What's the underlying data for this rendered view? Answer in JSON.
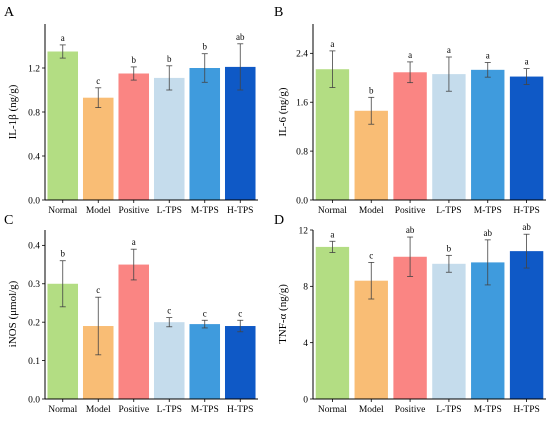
{
  "categories": [
    "Normal",
    "Model",
    "Positive",
    "L-TPS",
    "M-TPS",
    "H-TPS"
  ],
  "colors": [
    "#b3dd83",
    "#f9bd75",
    "#fa8583",
    "#c5dcec",
    "#3f9bdd",
    "#0f59c6"
  ],
  "chart_data": [
    {
      "type": "bar",
      "panel": "A",
      "ylabel": "IL-1β (ng/g)",
      "ylim": [
        0.0,
        1.6
      ],
      "yticks": [
        0.0,
        0.4,
        0.8,
        1.2
      ],
      "ytick_labels": [
        "0.0",
        "0.4",
        "0.8",
        "1.2"
      ],
      "values": [
        1.35,
        0.93,
        1.15,
        1.11,
        1.2,
        1.21
      ],
      "errors": [
        0.06,
        0.09,
        0.06,
        0.11,
        0.13,
        0.21
      ],
      "sig": [
        "a",
        "c",
        "b",
        "b",
        "b",
        "ab"
      ]
    },
    {
      "type": "bar",
      "panel": "B",
      "ylabel": "IL-6 (ng/g)",
      "ylim": [
        0.0,
        2.88
      ],
      "yticks": [
        0.0,
        0.8,
        1.6,
        2.4
      ],
      "ytick_labels": [
        "0.0",
        "0.8",
        "1.6",
        "2.4"
      ],
      "values": [
        2.14,
        1.46,
        2.09,
        2.06,
        2.13,
        2.02
      ],
      "errors": [
        0.3,
        0.22,
        0.17,
        0.28,
        0.12,
        0.13
      ],
      "sig": [
        "a",
        "b",
        "a",
        "a",
        "a",
        "a"
      ]
    },
    {
      "type": "bar",
      "panel": "C",
      "ylabel": "iNOS (μmol/g)",
      "ylim": [
        0.0,
        0.44
      ],
      "yticks": [
        0.0,
        0.1,
        0.2,
        0.3,
        0.4
      ],
      "ytick_labels": [
        "0.0",
        "0.1",
        "0.2",
        "0.3",
        "0.4"
      ],
      "values": [
        0.3,
        0.19,
        0.35,
        0.2,
        0.195,
        0.19
      ],
      "errors": [
        0.06,
        0.075,
        0.04,
        0.012,
        0.01,
        0.015
      ],
      "sig": [
        "b",
        "c",
        "a",
        "c",
        "c",
        "c"
      ]
    },
    {
      "type": "bar",
      "panel": "D",
      "ylabel": "TNF-α (ng/g)",
      "ylim": [
        0,
        12
      ],
      "yticks": [
        0,
        4,
        8,
        12
      ],
      "ytick_labels": [
        "0",
        "4",
        "8",
        "12"
      ],
      "values": [
        10.8,
        8.4,
        10.1,
        9.6,
        9.7,
        10.5
      ],
      "errors": [
        0.4,
        1.3,
        1.4,
        0.6,
        1.6,
        1.2
      ],
      "sig": [
        "a",
        "c",
        "ab",
        "b",
        "ab",
        "ab"
      ]
    }
  ]
}
